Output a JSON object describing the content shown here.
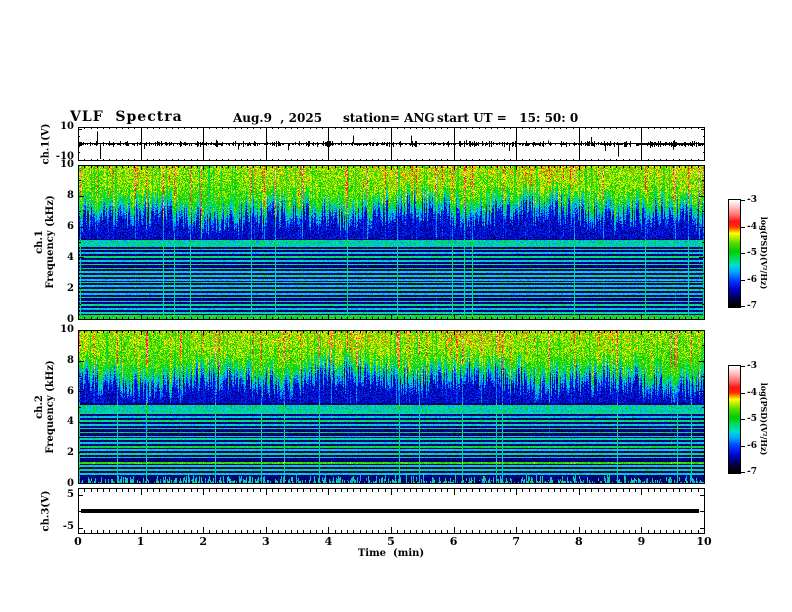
{
  "header": {
    "title": "VLF  Spectra",
    "date": "Aug.9  , 2025",
    "station": "station= ANG",
    "start_ut": "start UT =   15: 50: 0"
  },
  "panels": {
    "ch1_wave": {
      "label": "ch.1(V)",
      "ymax": "10",
      "ymin": "-10"
    },
    "ch1_spec": {
      "label_ch": "ch.1",
      "label_axis": "Frequency (kHz)"
    },
    "ch2_spec": {
      "label_ch": "ch.2",
      "label_axis": "Frequency (kHz)"
    },
    "ch3_wave": {
      "label": "ch.3(V)",
      "ymax": "5",
      "ymin": "-5"
    }
  },
  "time_axis": {
    "label": "Time  (min)",
    "ticks": [
      "0",
      "1",
      "2",
      "3",
      "4",
      "5",
      "6",
      "7",
      "8",
      "9",
      "10"
    ]
  },
  "freq_ticks": [
    "0",
    "2",
    "4",
    "6",
    "8",
    "10"
  ],
  "colorbar": {
    "label": "log(PSD)(V²/Hz)",
    "ticks": [
      "-3",
      "-4",
      "-5",
      "-6",
      "-7"
    ],
    "value_range": [
      -7,
      -3
    ],
    "stops": [
      [
        0.0,
        "#000000"
      ],
      [
        0.08,
        "#000048"
      ],
      [
        0.16,
        "#0000cc"
      ],
      [
        0.25,
        "#0040ff"
      ],
      [
        0.33,
        "#00aaff"
      ],
      [
        0.39,
        "#00ddcc"
      ],
      [
        0.45,
        "#00dd66"
      ],
      [
        0.52,
        "#00cc00"
      ],
      [
        0.6,
        "#55dd00"
      ],
      [
        0.65,
        "#bbee00"
      ],
      [
        0.69,
        "#ffff00"
      ],
      [
        0.72,
        "#ff9900"
      ],
      [
        0.75,
        "#ff3300"
      ],
      [
        0.8,
        "#ff1111"
      ],
      [
        0.87,
        "#ff7777"
      ],
      [
        0.93,
        "#ffbbbb"
      ],
      [
        1.0,
        "#ffffff"
      ]
    ]
  },
  "chart_data": [
    {
      "type": "line",
      "panel": "ch1_waveform",
      "ylabel": "ch.1(V)",
      "xlim": [
        0,
        10
      ],
      "ylim": [
        -10,
        10
      ],
      "baseline": 0,
      "noise_amplitude_V": 0.8,
      "grid_minutes": true,
      "seed": 5,
      "spikes": [
        [
          0.3,
          9
        ],
        [
          0.345,
          -12
        ],
        [
          1.05,
          -3.5
        ],
        [
          2.2,
          3
        ],
        [
          2.55,
          -4
        ],
        [
          3.35,
          -4.5
        ],
        [
          4.4,
          6
        ],
        [
          5.32,
          6
        ],
        [
          6.2,
          3
        ],
        [
          6.88,
          -5
        ],
        [
          7.5,
          2.5
        ],
        [
          8.2,
          5
        ],
        [
          8.42,
          -5
        ],
        [
          8.62,
          -9
        ],
        [
          9.0,
          2.5
        ],
        [
          9.5,
          -4
        ]
      ]
    },
    {
      "type": "heatmap",
      "panel": "ch1_spectrogram",
      "ylabel": "ch.1 Frequency (kHz)",
      "xlim": [
        0,
        10
      ],
      "ylim": [
        0,
        10
      ],
      "value_label": "log(PSD)(V²/Hz)",
      "value_range": [
        -7,
        -3
      ],
      "seed": 11,
      "edge_kHz": 6.25,
      "band_kHz": [
        4.72,
        5.16
      ],
      "bottom": "band",
      "lines": [
        [
          4.82,
          -5.45
        ],
        [
          4.55,
          -5.3
        ],
        [
          4.3,
          -5.55
        ],
        [
          4.05,
          -5.25
        ],
        [
          3.8,
          -5.5
        ],
        [
          3.58,
          -5.3
        ],
        [
          3.33,
          -5.2
        ],
        [
          3.1,
          -5.5
        ],
        [
          2.85,
          -5.3
        ],
        [
          2.6,
          -5.55
        ],
        [
          2.42,
          -5.2
        ],
        [
          2.18,
          -5.5
        ],
        [
          1.95,
          -5.3
        ],
        [
          1.7,
          -5.55
        ],
        [
          1.45,
          -5.25
        ],
        [
          1.2,
          -5.5
        ],
        [
          0.95,
          -5.3
        ],
        [
          0.7,
          -5.55
        ],
        [
          0.45,
          -5.4
        ]
      ]
    },
    {
      "type": "heatmap",
      "panel": "ch2_spectrogram",
      "ylabel": "ch.2 Frequency (kHz)",
      "xlim": [
        0,
        10
      ],
      "ylim": [
        0,
        10
      ],
      "value_label": "log(PSD)(V²/Hz)",
      "value_range": [
        -7,
        -3
      ],
      "seed": 77,
      "edge_kHz": 6.15,
      "band_kHz": [
        4.7,
        5.1
      ],
      "bottom": "grass",
      "lines": [
        [
          4.6,
          -5.35
        ],
        [
          4.35,
          -5.55
        ],
        [
          4.1,
          -5.25
        ],
        [
          3.85,
          -5.5
        ],
        [
          3.6,
          -5.3
        ],
        [
          3.35,
          -5.2
        ],
        [
          3.08,
          -5.5
        ],
        [
          2.9,
          -5.35
        ],
        [
          2.65,
          -5.5
        ],
        [
          2.42,
          -5.1
        ],
        [
          2.2,
          -5.5
        ],
        [
          1.95,
          -5.3
        ],
        [
          1.72,
          -5.5
        ],
        [
          1.38,
          -4.75
        ],
        [
          1.15,
          -5.4
        ],
        [
          0.9,
          -5.3
        ],
        [
          0.65,
          -5.5
        ]
      ]
    },
    {
      "type": "line",
      "panel": "ch3_waveform",
      "ylabel": "ch.3(V)",
      "xlim": [
        0,
        10
      ],
      "ylim": [
        -7,
        7
      ],
      "value": 0,
      "line_thickness_V": 1.2
    }
  ]
}
